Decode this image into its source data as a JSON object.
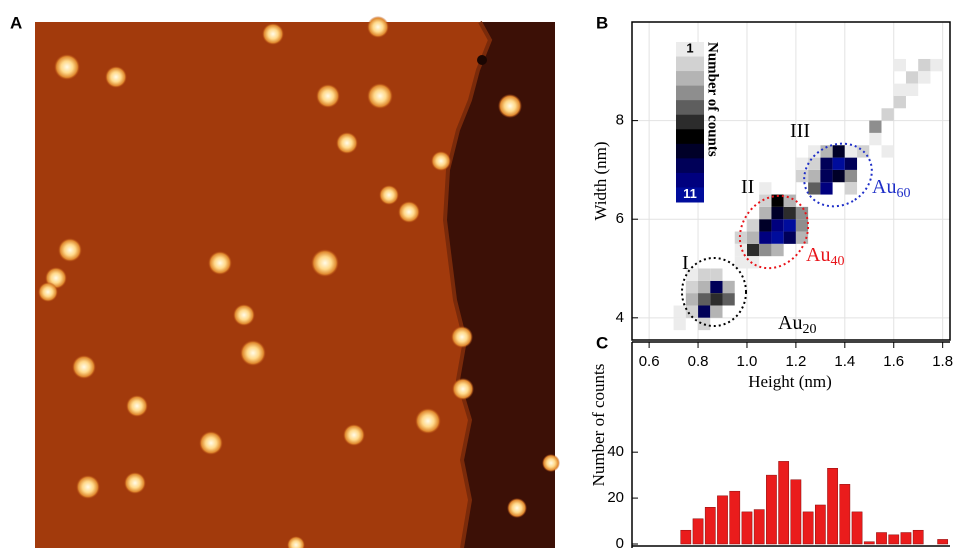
{
  "image_panel": {
    "label": "A"
  },
  "chart_data": [
    {
      "type": "heatmap",
      "panel": "B",
      "xlabel": "Height (nm)",
      "ylabel": "Width (nm)",
      "xlim": [
        0.53,
        1.83
      ],
      "ylim": [
        3.55,
        10
      ],
      "xticks": [
        {
          "value": 0.6,
          "label": "0.6"
        },
        {
          "value": 0.8,
          "label": "0.8"
        },
        {
          "value": 1.0,
          "label": "1.0"
        },
        {
          "value": 1.2,
          "label": "1.2"
        },
        {
          "value": 1.4,
          "label": "1.4"
        },
        {
          "value": 1.6,
          "label": "1.6"
        },
        {
          "value": 1.8,
          "label": "1.8"
        }
      ],
      "yticks": [
        4,
        6,
        8
      ],
      "grid": true,
      "cell_width": 0.05,
      "cell_height": 0.25,
      "x": [
        0.775,
        0.825,
        0.875,
        0.925,
        0.775,
        0.825,
        0.875,
        0.925,
        0.825,
        0.875,
        0.775,
        0.825,
        0.875,
        0.725,
        0.775,
        0.825,
        0.725,
        1.025,
        1.075,
        1.025,
        1.075,
        1.125,
        1.175,
        1.025,
        1.075,
        1.125,
        1.175,
        1.225,
        1.075,
        1.125,
        1.175,
        1.225,
        1.125,
        1.175,
        1.075,
        0.975,
        1.225,
        1.075,
        0.975,
        1.125,
        1.275,
        1.325,
        1.275,
        1.325,
        1.375,
        1.425,
        1.325,
        1.375,
        1.425,
        1.375,
        1.325,
        1.225,
        1.275,
        1.425,
        1.225,
        1.275,
        1.525,
        1.575,
        1.625,
        1.675,
        1.675,
        1.725,
        1.775,
        1.625,
        1.575,
        1.475,
        1.525,
        1.425,
        1.725,
        1.625,
        1.025,
        0.975
      ],
      "y": [
        4.625,
        4.625,
        4.625,
        4.625,
        4.375,
        4.375,
        4.375,
        4.375,
        4.125,
        4.125,
        4.875,
        4.875,
        4.875,
        4.125,
        4.125,
        3.875,
        3.875,
        5.375,
        5.375,
        5.625,
        5.625,
        5.625,
        5.625,
        5.875,
        5.875,
        5.875,
        5.875,
        5.875,
        6.125,
        6.125,
        6.125,
        6.125,
        6.375,
        6.375,
        6.375,
        5.625,
        5.625,
        6.625,
        5.375,
        5.375,
        6.625,
        6.625,
        6.875,
        6.875,
        6.875,
        6.875,
        7.125,
        7.125,
        7.125,
        7.375,
        7.375,
        6.875,
        7.125,
        6.625,
        7.125,
        7.375,
        7.875,
        8.125,
        8.375,
        8.875,
        8.625,
        9.125,
        9.125,
        8.625,
        7.375,
        7.375,
        7.625,
        7.375,
        8.875,
        9.125,
        5.125,
        5.125
      ],
      "values": [
        2,
        3,
        9,
        3,
        3,
        5,
        6,
        5,
        9,
        3,
        1,
        2,
        2,
        1,
        2,
        2,
        1,
        6,
        4,
        3,
        10,
        11,
        9,
        2,
        8,
        10,
        11,
        4,
        3,
        8,
        6,
        4,
        7,
        3,
        2,
        2,
        3,
        1,
        1,
        3,
        5,
        10,
        3,
        9,
        8,
        4,
        9,
        11,
        9,
        8,
        3,
        2,
        2,
        2,
        1,
        1,
        4,
        2,
        2,
        2,
        1,
        2,
        1,
        1,
        1,
        2,
        1,
        1,
        1,
        1,
        1,
        1
      ],
      "colorbar": {
        "title": "Number of counts",
        "ticks": [
          1,
          11
        ],
        "colors": [
          "#ececec",
          "#d2d2d2",
          "#b4b4b4",
          "#8e8e8e",
          "#5e5e5e",
          "#2c2c2c",
          "#000000",
          "#000028",
          "#000058",
          "#00007e",
          "#000c9c"
        ]
      },
      "annotations": [
        {
          "text": "I",
          "color": "#000000"
        },
        {
          "text": "II",
          "color": "#000000"
        },
        {
          "text": "III",
          "color": "#000000"
        },
        {
          "text": "Au",
          "sub": "20",
          "color": "#000000"
        },
        {
          "text": "Au",
          "sub": "40",
          "color": "#e8141a"
        },
        {
          "text": "Au",
          "sub": "60",
          "color": "#1f2fc8"
        }
      ]
    },
    {
      "type": "histogram",
      "panel": "C",
      "ylabel": "Number of counts",
      "color": "#ea1c1c",
      "xlim": [
        0.53,
        1.83
      ],
      "ylim": [
        0,
        88
      ],
      "yticks": [
        0,
        20,
        40
      ],
      "bins": [
        0.725,
        0.775,
        0.825,
        0.875,
        0.925,
        0.975,
        1.025,
        1.075,
        1.125,
        1.175,
        1.225,
        1.275,
        1.325,
        1.375,
        1.425,
        1.475,
        1.525,
        1.575,
        1.625,
        1.675,
        1.725,
        1.775,
        1.825
      ],
      "values": [
        6,
        11,
        16,
        21,
        23,
        14,
        15,
        30,
        36,
        28,
        14,
        17,
        33,
        26,
        14,
        1,
        5,
        4,
        5,
        6,
        0,
        2
      ]
    }
  ]
}
